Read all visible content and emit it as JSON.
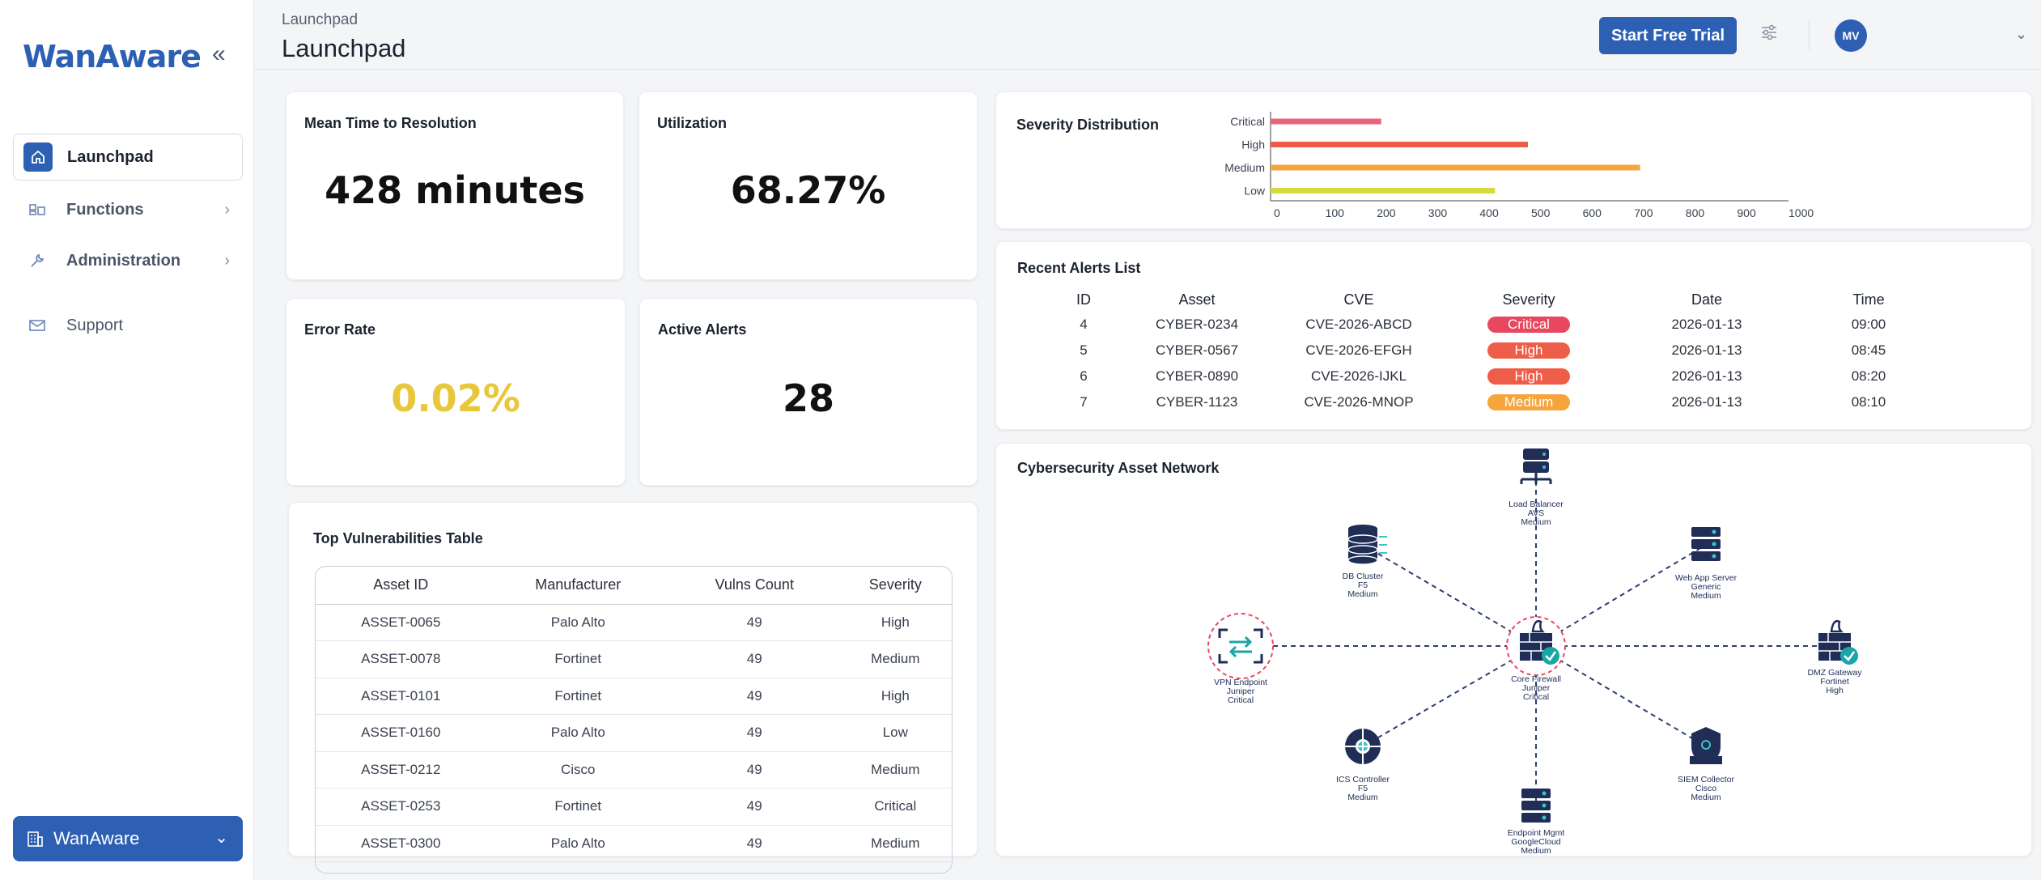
{
  "sidebar": {
    "logo": "WanAware",
    "items": [
      {
        "label": "Launchpad"
      },
      {
        "label": "Functions"
      },
      {
        "label": "Administration"
      },
      {
        "label": "Support"
      }
    ],
    "org": "WanAware"
  },
  "header": {
    "breadcrumb": "Launchpad",
    "title": "Launchpad",
    "trial_button": "Start Free Trial",
    "avatar_initials": "MV"
  },
  "metrics": {
    "mttr": {
      "label": "Mean Time to Resolution",
      "value": "428 minutes"
    },
    "utilization": {
      "label": "Utilization",
      "value": "68.27%"
    },
    "error_rate": {
      "label": "Error Rate",
      "value": "0.02%"
    },
    "active_alerts": {
      "label": "Active Alerts",
      "value": "28"
    }
  },
  "colors": {
    "accent": "#2d5fb3",
    "critical": "#e8475f",
    "high": "#ee5d48",
    "medium": "#f5a53c",
    "low": "#d4dc3c",
    "error_rate": "#e8c73a"
  },
  "chart_data": {
    "type": "bar",
    "orientation": "horizontal",
    "title": "Severity Distribution",
    "categories": [
      "Critical",
      "High",
      "Medium",
      "Low"
    ],
    "values": [
      215,
      500,
      718,
      436
    ],
    "xlim": [
      0,
      1000
    ],
    "xticks": [
      "0",
      "100",
      "200",
      "300",
      "400",
      "500",
      "600",
      "700",
      "800",
      "900",
      "1000"
    ],
    "colors": [
      "#e8647a",
      "#ee5d48",
      "#f5a53c",
      "#d4dc3c"
    ]
  },
  "vulns": {
    "title": "Top Vulnerabilities Table",
    "columns": [
      "Asset ID",
      "Manufacturer",
      "Vulns Count",
      "Severity"
    ],
    "rows": [
      [
        "ASSET-0065",
        "Palo Alto",
        "49",
        "High"
      ],
      [
        "ASSET-0078",
        "Fortinet",
        "49",
        "Medium"
      ],
      [
        "ASSET-0101",
        "Fortinet",
        "49",
        "High"
      ],
      [
        "ASSET-0160",
        "Palo Alto",
        "49",
        "Low"
      ],
      [
        "ASSET-0212",
        "Cisco",
        "49",
        "Medium"
      ],
      [
        "ASSET-0253",
        "Fortinet",
        "49",
        "Critical"
      ],
      [
        "ASSET-0300",
        "Palo Alto",
        "49",
        "Medium"
      ]
    ]
  },
  "alerts": {
    "title": "Recent Alerts List",
    "columns": [
      "ID",
      "Asset",
      "CVE",
      "Severity",
      "Date",
      "Time"
    ],
    "rows": [
      [
        "4",
        "CYBER-0234",
        "CVE-2026-ABCD",
        "Critical",
        "2026-01-13",
        "09:00"
      ],
      [
        "5",
        "CYBER-0567",
        "CVE-2026-EFGH",
        "High",
        "2026-01-13",
        "08:45"
      ],
      [
        "6",
        "CYBER-0890",
        "CVE-2026-IJKL",
        "High",
        "2026-01-13",
        "08:20"
      ],
      [
        "7",
        "CYBER-1123",
        "CVE-2026-MNOP",
        "Medium",
        "2026-01-13",
        "08:10"
      ]
    ]
  },
  "network": {
    "title": "Cybersecurity Asset Network",
    "center": {
      "name": "Core Firewall",
      "vendor": "Juniper",
      "severity": "Critical",
      "icon": "firewall-icon"
    },
    "nodes": [
      {
        "name": "Load Balancer",
        "vendor": "AVS",
        "severity": "Medium",
        "icon": "load-balancer-icon"
      },
      {
        "name": "Web App Server",
        "vendor": "Generic",
        "severity": "Medium",
        "icon": "server-icon"
      },
      {
        "name": "DMZ Gateway",
        "vendor": "Fortinet",
        "severity": "High",
        "icon": "firewall-icon"
      },
      {
        "name": "SIEM Collector",
        "vendor": "Cisco",
        "severity": "Medium",
        "icon": "shield-icon"
      },
      {
        "name": "Endpoint Mgmt",
        "vendor": "GoogleCloud",
        "severity": "Medium",
        "icon": "server-icon"
      },
      {
        "name": "ICS Controller",
        "vendor": "F5",
        "severity": "Medium",
        "icon": "controller-icon"
      },
      {
        "name": "VPN Endpoint",
        "vendor": "Juniper",
        "severity": "Critical",
        "icon": "vpn-icon"
      },
      {
        "name": "DB Cluster",
        "vendor": "F5",
        "severity": "Medium",
        "icon": "database-icon"
      }
    ]
  }
}
